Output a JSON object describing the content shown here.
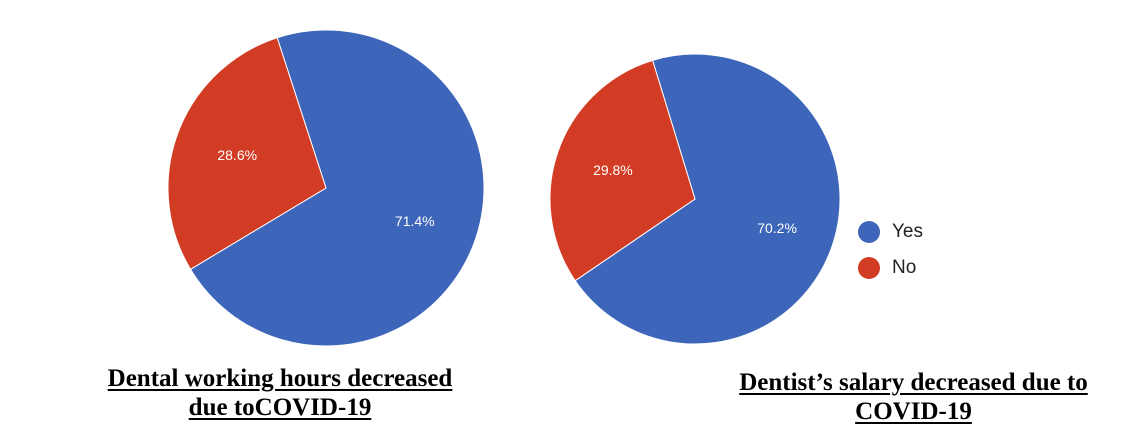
{
  "chart_data": [
    {
      "type": "pie",
      "title": "Dental working hours decreased due toCOVID-19",
      "categories": [
        "Yes",
        "No"
      ],
      "values": [
        71.4,
        28.6
      ],
      "labels": [
        "71.4%",
        "28.6%"
      ],
      "colors": [
        "#3d65b9",
        "#d33c24"
      ],
      "start_angle_deg": -18
    },
    {
      "type": "pie",
      "title": "Dentist’s salary decreased due to COVID-19",
      "categories": [
        "Yes",
        "No"
      ],
      "values": [
        70.2,
        29.8
      ],
      "labels": [
        "70.2%",
        "29.8%"
      ],
      "colors": [
        "#3d65b9",
        "#d33c24"
      ],
      "start_angle_deg": -17
    }
  ],
  "legend": {
    "position": "right",
    "items": [
      {
        "label": "Yes",
        "color": "#3d65b9"
      },
      {
        "label": "No",
        "color": "#d33c24"
      }
    ]
  },
  "captions": [
    {
      "line1": "Dental working hours decreased",
      "line2": "due toCOVID-19"
    },
    {
      "line1": "Dentist’s salary decreased due to",
      "line2": "COVID-19"
    }
  ]
}
